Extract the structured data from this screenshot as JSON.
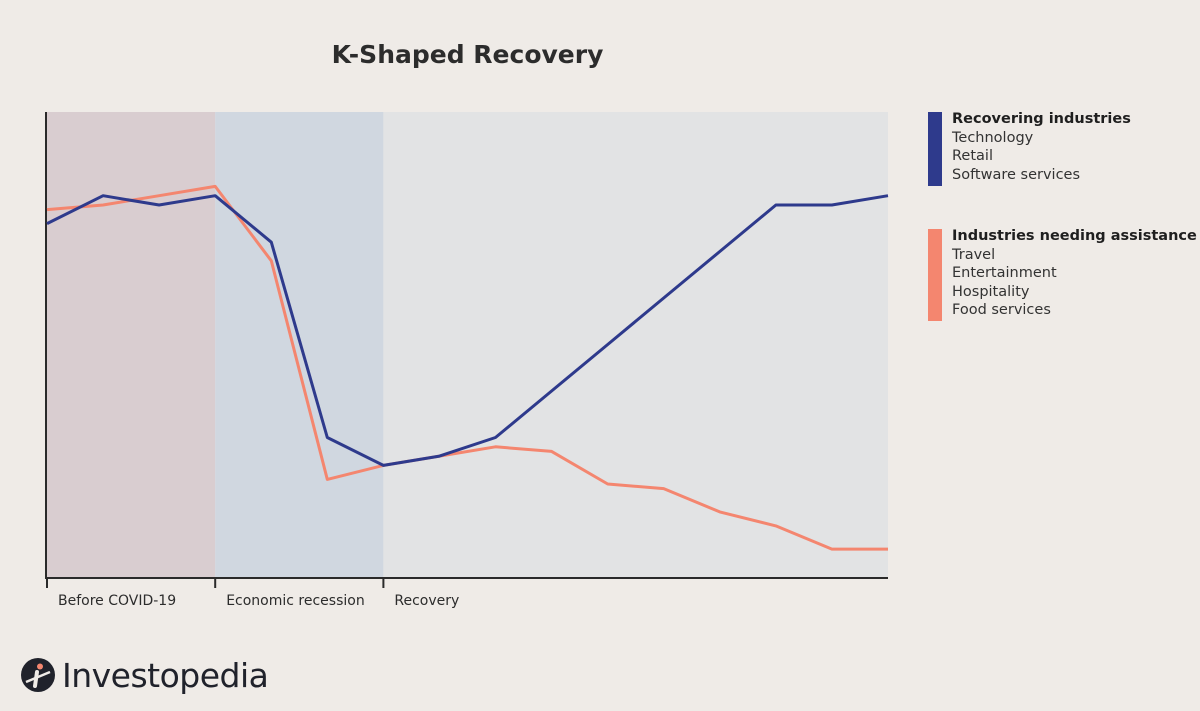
{
  "chart_data": {
    "type": "line",
    "title": "K-Shaped Recovery",
    "x": [
      0,
      1,
      2,
      3,
      4,
      5,
      6,
      7,
      8,
      9,
      10,
      11,
      12,
      13,
      14,
      15
    ],
    "ylim": [
      0,
      100
    ],
    "phases": [
      {
        "label": "Before COVID-19",
        "start": 0,
        "end": 3,
        "color": "#d9cdd0"
      },
      {
        "label": "Economic recession",
        "start": 3,
        "end": 6,
        "color": "#d0d7e0"
      },
      {
        "label": "Recovery",
        "start": 6,
        "end": 15,
        "color": "#e2e3e4"
      }
    ],
    "series": [
      {
        "name": "Recovering industries",
        "color": "#2e3a8c",
        "values": [
          76,
          82,
          80,
          82,
          72,
          30,
          24,
          26,
          30,
          40,
          50,
          60,
          70,
          80,
          80,
          82
        ]
      },
      {
        "name": "Industries needing assistance",
        "color": "#f4866f",
        "values": [
          79,
          80,
          82,
          84,
          68,
          21,
          24,
          26,
          28,
          27,
          20,
          19,
          14,
          11,
          6,
          6
        ]
      }
    ],
    "legend": [
      {
        "title": "Recovering industries",
        "items": [
          "Technology",
          "Retail",
          "Software services"
        ],
        "color": "#2e3a8c"
      },
      {
        "title": "Industries needing assistance",
        "items": [
          "Travel",
          "Entertainment",
          "Hospitality",
          "Food services"
        ],
        "color": "#f4866f"
      }
    ],
    "legend_position": "right",
    "grid": false
  },
  "brand": {
    "name": "Investopedia"
  }
}
